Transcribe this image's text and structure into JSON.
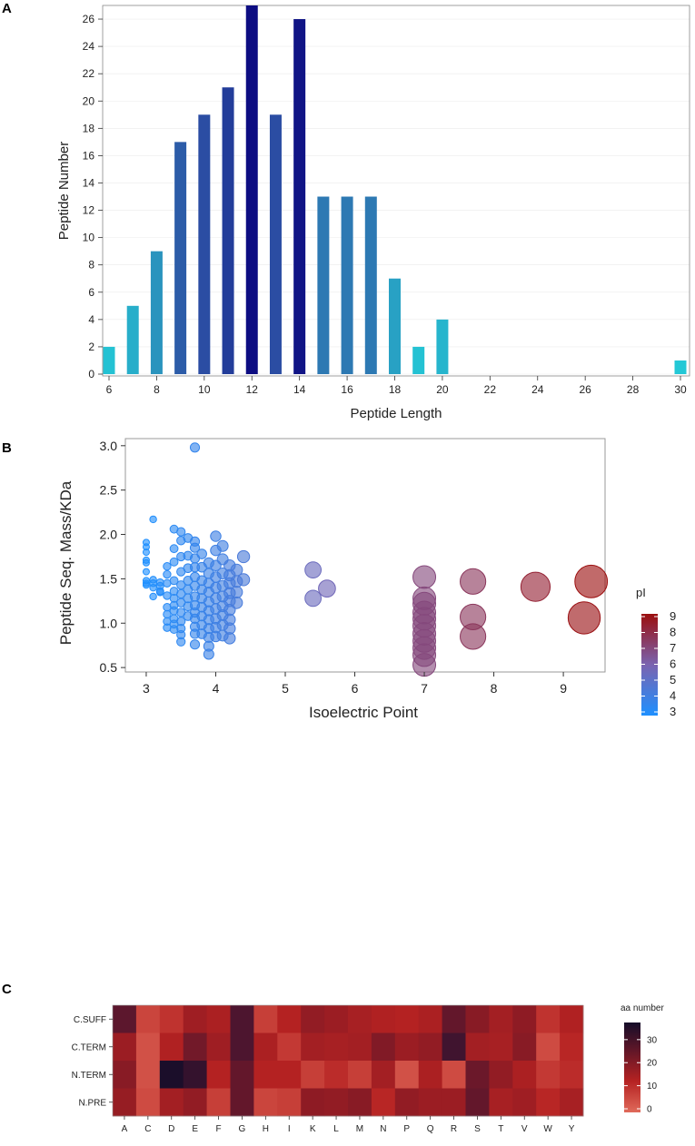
{
  "panels": {
    "a": "A",
    "b": "B",
    "c": "C"
  },
  "chart_data": [
    {
      "type": "bar",
      "title": "",
      "xlabel": "Peptide Length",
      "ylabel": "Peptide Number",
      "x": [
        6,
        7,
        8,
        9,
        10,
        11,
        12,
        13,
        14,
        15,
        16,
        17,
        18,
        19,
        20,
        30
      ],
      "values": [
        2,
        5,
        9,
        17,
        19,
        21,
        27,
        19,
        26,
        13,
        13,
        13,
        7,
        2,
        4,
        1
      ],
      "xlim": [
        6,
        30
      ],
      "ylim": [
        0,
        27
      ],
      "xticks": [
        6,
        8,
        10,
        12,
        14,
        16,
        18,
        20,
        22,
        24,
        26,
        28,
        30
      ],
      "yticks": [
        0,
        2,
        4,
        6,
        8,
        10,
        12,
        14,
        16,
        18,
        20,
        22,
        24,
        26
      ],
      "colors": {
        "low": "#22cfd9",
        "high": "#0d0d82"
      }
    },
    {
      "type": "scatter",
      "title": "",
      "xlabel": "Isoelectric Point",
      "ylabel": "Peptide Seq. Mass/KDa",
      "xlim": [
        2.7,
        9.6
      ],
      "ylim": [
        0.45,
        3.08
      ],
      "xticks": [
        3,
        4,
        5,
        6,
        7,
        8,
        9
      ],
      "yticks": [
        0.5,
        1.0,
        1.5,
        2.0,
        2.5,
        3.0
      ],
      "ytick_labels": [
        "0.5",
        "1.0",
        "1.5",
        "2.0",
        "2.5",
        "3.0"
      ],
      "legend": {
        "title": "pI",
        "values": [
          9,
          8,
          7,
          6,
          5,
          4,
          3
        ],
        "position": "right",
        "low": "#1e90ff",
        "high": "#9b0e0e"
      },
      "points": [
        [
          3.0,
          1.91
        ],
        [
          3.0,
          1.86
        ],
        [
          3.0,
          1.8
        ],
        [
          3.0,
          1.71
        ],
        [
          3.0,
          1.68
        ],
        [
          3.0,
          1.58
        ],
        [
          3.0,
          1.48
        ],
        [
          3.0,
          1.43
        ],
        [
          3.0,
          1.45
        ],
        [
          3.1,
          2.17
        ],
        [
          3.1,
          1.45
        ],
        [
          3.1,
          1.49
        ],
        [
          3.1,
          1.3
        ],
        [
          3.1,
          1.4
        ],
        [
          3.2,
          1.46
        ],
        [
          3.2,
          1.36
        ],
        [
          3.2,
          1.42
        ],
        [
          3.2,
          1.35
        ],
        [
          3.3,
          1.64
        ],
        [
          3.3,
          1.55
        ],
        [
          3.3,
          1.45
        ],
        [
          3.3,
          1.31
        ],
        [
          3.3,
          1.18
        ],
        [
          3.3,
          1.1
        ],
        [
          3.3,
          1.02
        ],
        [
          3.3,
          0.95
        ],
        [
          3.4,
          2.06
        ],
        [
          3.4,
          1.84
        ],
        [
          3.4,
          1.69
        ],
        [
          3.4,
          1.48
        ],
        [
          3.4,
          1.36
        ],
        [
          3.4,
          1.28
        ],
        [
          3.4,
          1.2
        ],
        [
          3.4,
          1.14
        ],
        [
          3.4,
          1.05
        ],
        [
          3.4,
          0.99
        ],
        [
          3.4,
          0.93
        ],
        [
          3.5,
          2.03
        ],
        [
          3.5,
          1.93
        ],
        [
          3.5,
          1.75
        ],
        [
          3.5,
          1.58
        ],
        [
          3.5,
          1.43
        ],
        [
          3.5,
          1.33
        ],
        [
          3.5,
          1.23
        ],
        [
          3.5,
          1.12
        ],
        [
          3.5,
          1.02
        ],
        [
          3.5,
          0.94
        ],
        [
          3.5,
          0.87
        ],
        [
          3.5,
          0.79
        ],
        [
          3.6,
          1.96
        ],
        [
          3.6,
          1.76
        ],
        [
          3.6,
          1.62
        ],
        [
          3.6,
          1.48
        ],
        [
          3.6,
          1.38
        ],
        [
          3.6,
          1.28
        ],
        [
          3.6,
          1.19
        ],
        [
          3.6,
          1.08
        ],
        [
          3.7,
          2.98
        ],
        [
          3.7,
          1.92
        ],
        [
          3.7,
          1.85
        ],
        [
          3.7,
          1.73
        ],
        [
          3.7,
          1.63
        ],
        [
          3.7,
          1.52
        ],
        [
          3.7,
          1.42
        ],
        [
          3.7,
          1.3
        ],
        [
          3.7,
          1.2
        ],
        [
          3.7,
          1.12
        ],
        [
          3.7,
          1.05
        ],
        [
          3.7,
          0.96
        ],
        [
          3.7,
          0.88
        ],
        [
          3.7,
          0.76
        ],
        [
          3.8,
          1.78
        ],
        [
          3.8,
          1.63
        ],
        [
          3.8,
          1.48
        ],
        [
          3.8,
          1.38
        ],
        [
          3.8,
          1.28
        ],
        [
          3.8,
          1.18
        ],
        [
          3.8,
          1.08
        ],
        [
          3.8,
          0.98
        ],
        [
          3.8,
          0.88
        ],
        [
          3.9,
          1.68
        ],
        [
          3.9,
          1.56
        ],
        [
          3.9,
          1.45
        ],
        [
          3.9,
          1.35
        ],
        [
          3.9,
          1.24
        ],
        [
          3.9,
          1.14
        ],
        [
          3.9,
          1.04
        ],
        [
          3.9,
          0.94
        ],
        [
          3.9,
          0.84
        ],
        [
          3.9,
          0.74
        ],
        [
          3.9,
          0.65
        ],
        [
          4.0,
          1.98
        ],
        [
          4.0,
          1.82
        ],
        [
          4.0,
          1.65
        ],
        [
          4.0,
          1.52
        ],
        [
          4.0,
          1.4
        ],
        [
          4.0,
          1.28
        ],
        [
          4.0,
          1.16
        ],
        [
          4.0,
          1.05
        ],
        [
          4.0,
          0.95
        ],
        [
          4.0,
          0.85
        ],
        [
          4.1,
          1.87
        ],
        [
          4.1,
          1.72
        ],
        [
          4.1,
          1.56
        ],
        [
          4.1,
          1.42
        ],
        [
          4.1,
          1.3
        ],
        [
          4.1,
          1.19
        ],
        [
          4.1,
          1.09
        ],
        [
          4.1,
          0.98
        ],
        [
          4.1,
          0.86
        ],
        [
          4.2,
          1.65
        ],
        [
          4.2,
          1.54
        ],
        [
          4.2,
          1.45
        ],
        [
          4.2,
          1.34
        ],
        [
          4.2,
          1.25
        ],
        [
          4.2,
          1.15
        ],
        [
          4.2,
          1.04
        ],
        [
          4.2,
          0.94
        ],
        [
          4.2,
          0.83
        ],
        [
          4.3,
          1.6
        ],
        [
          4.3,
          1.47
        ],
        [
          4.3,
          1.35
        ],
        [
          4.3,
          1.23
        ],
        [
          4.4,
          1.75
        ],
        [
          4.4,
          1.49
        ],
        [
          5.4,
          1.6
        ],
        [
          5.4,
          1.28
        ],
        [
          5.6,
          1.39
        ],
        [
          7.0,
          1.52
        ],
        [
          7.0,
          1.28
        ],
        [
          7.0,
          1.22
        ],
        [
          7.0,
          1.12
        ],
        [
          7.0,
          1.05
        ],
        [
          7.0,
          0.97
        ],
        [
          7.0,
          0.88
        ],
        [
          7.0,
          0.8
        ],
        [
          7.0,
          0.72
        ],
        [
          7.0,
          0.64
        ],
        [
          7.0,
          0.53
        ],
        [
          7.7,
          1.47
        ],
        [
          7.7,
          1.07
        ],
        [
          7.7,
          0.85
        ],
        [
          8.6,
          1.41
        ],
        [
          9.3,
          1.06
        ],
        [
          9.4,
          1.47
        ]
      ]
    },
    {
      "type": "heatmap",
      "title": "",
      "xlabel": "",
      "ylabel": "",
      "columns": [
        "A",
        "C",
        "D",
        "E",
        "F",
        "G",
        "H",
        "I",
        "K",
        "L",
        "M",
        "N",
        "P",
        "Q",
        "R",
        "S",
        "T",
        "V",
        "W",
        "Y"
      ],
      "rows": [
        "C.SUFF",
        "C.TERM",
        "N.TERM",
        "N.PRE"
      ],
      "values": [
        [
          28,
          6,
          9,
          17,
          14,
          30,
          7,
          12,
          20,
          18,
          15,
          13,
          12,
          14,
          27,
          22,
          16,
          21,
          9,
          13
        ],
        [
          18,
          4,
          13,
          25,
          17,
          30,
          14,
          8,
          16,
          15,
          16,
          23,
          18,
          20,
          32,
          16,
          15,
          22,
          5,
          11
        ],
        [
          22,
          4,
          38,
          34,
          12,
          27,
          12,
          12,
          7,
          10,
          7,
          16,
          4,
          14,
          5,
          26,
          20,
          14,
          8,
          10
        ],
        [
          19,
          5,
          16,
          20,
          7,
          27,
          6,
          7,
          21,
          20,
          22,
          11,
          20,
          18,
          18,
          27,
          15,
          17,
          11,
          15
        ]
      ],
      "legend": {
        "title": "aa number",
        "ticks": [
          0,
          10,
          20,
          30
        ],
        "range": [
          0,
          39
        ],
        "position": "right"
      }
    }
  ]
}
